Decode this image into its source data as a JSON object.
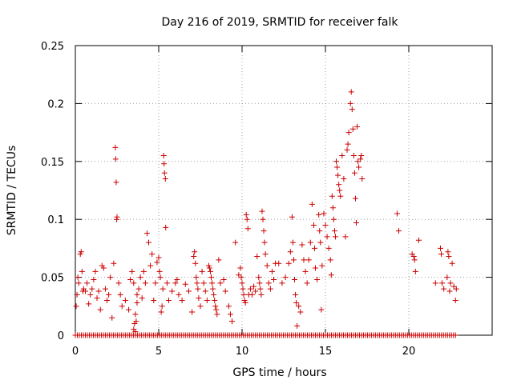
{
  "chart_data": {
    "type": "scatter",
    "title": "Day 216 of 2019, SRMTID for receiver falk",
    "xlabel": "GPS time / hours",
    "ylabel": "SRMTID / TECUs",
    "xlim": [
      0,
      25
    ],
    "ylim": [
      0,
      0.25
    ],
    "xticks": [
      0,
      5,
      10,
      15,
      20
    ],
    "xtick_labels": [
      "0",
      "5",
      "10",
      "15",
      "20"
    ],
    "yticks": [
      0,
      0.05,
      0.1,
      0.15,
      0.2,
      0.25
    ],
    "ytick_labels": [
      "0",
      "0.05",
      "0.1",
      "0.15",
      "0.2",
      "0.25"
    ],
    "grid": true,
    "marker": "+",
    "color": "#cc0000",
    "series": [
      {
        "name": "SRMTID",
        "points": [
          [
            0.05,
            0.025
          ],
          [
            0.1,
            0.035
          ],
          [
            0.15,
            0.05
          ],
          [
            0.2,
            0.045
          ],
          [
            0.3,
            0.07
          ],
          [
            0.35,
            0.072
          ],
          [
            0.4,
            0.055
          ],
          [
            0.45,
            0.038
          ],
          [
            0.5,
            0.04
          ],
          [
            0.6,
            0.038
          ],
          [
            0.7,
            0.045
          ],
          [
            0.8,
            0.027
          ],
          [
            0.9,
            0.035
          ],
          [
            1.0,
            0.04
          ],
          [
            1.1,
            0.048
          ],
          [
            1.2,
            0.055
          ],
          [
            1.3,
            0.032
          ],
          [
            1.4,
            0.038
          ],
          [
            1.5,
            0.022
          ],
          [
            1.6,
            0.06
          ],
          [
            1.7,
            0.058
          ],
          [
            1.8,
            0.04
          ],
          [
            1.9,
            0.03
          ],
          [
            2.0,
            0.035
          ],
          [
            2.1,
            0.05
          ],
          [
            2.2,
            0.015
          ],
          [
            2.3,
            0.062
          ],
          [
            2.4,
            0.162
          ],
          [
            2.42,
            0.152
          ],
          [
            2.45,
            0.132
          ],
          [
            2.48,
            0.1
          ],
          [
            2.5,
            0.102
          ],
          [
            2.6,
            0.045
          ],
          [
            2.7,
            0.035
          ],
          [
            2.8,
            0.025
          ],
          [
            3.0,
            0.03
          ],
          [
            3.2,
            0.022
          ],
          [
            3.3,
            0.048
          ],
          [
            3.4,
            0.055
          ],
          [
            3.5,
            0.045
          ],
          [
            3.5,
            0.005
          ],
          [
            3.55,
            0.01
          ],
          [
            3.6,
            0.003
          ],
          [
            3.6,
            0.018
          ],
          [
            3.65,
            0.012
          ],
          [
            3.7,
            0.028
          ],
          [
            3.7,
            0.035
          ],
          [
            3.8,
            0.04
          ],
          [
            3.9,
            0.05
          ],
          [
            4.0,
            0.032
          ],
          [
            4.1,
            0.055
          ],
          [
            4.2,
            0.045
          ],
          [
            4.3,
            0.088
          ],
          [
            4.4,
            0.08
          ],
          [
            4.5,
            0.06
          ],
          [
            4.6,
            0.07
          ],
          [
            4.7,
            0.03
          ],
          [
            4.8,
            0.045
          ],
          [
            4.9,
            0.063
          ],
          [
            5.0,
            0.067
          ],
          [
            5.05,
            0.055
          ],
          [
            5.1,
            0.05
          ],
          [
            5.15,
            0.02
          ],
          [
            5.2,
            0.025
          ],
          [
            5.25,
            0.04
          ],
          [
            5.3,
            0.155
          ],
          [
            5.32,
            0.148
          ],
          [
            5.35,
            0.14
          ],
          [
            5.4,
            0.135
          ],
          [
            5.42,
            0.093
          ],
          [
            5.5,
            0.045
          ],
          [
            5.6,
            0.03
          ],
          [
            5.8,
            0.038
          ],
          [
            6.0,
            0.045
          ],
          [
            6.1,
            0.048
          ],
          [
            6.2,
            0.035
          ],
          [
            6.4,
            0.03
          ],
          [
            6.6,
            0.044
          ],
          [
            6.8,
            0.038
          ],
          [
            7.0,
            0.02
          ],
          [
            7.1,
            0.068
          ],
          [
            7.15,
            0.072
          ],
          [
            7.2,
            0.062
          ],
          [
            7.25,
            0.05
          ],
          [
            7.3,
            0.045
          ],
          [
            7.35,
            0.04
          ],
          [
            7.4,
            0.032
          ],
          [
            7.5,
            0.025
          ],
          [
            7.6,
            0.055
          ],
          [
            7.7,
            0.045
          ],
          [
            7.8,
            0.038
          ],
          [
            7.9,
            0.03
          ],
          [
            8.0,
            0.06
          ],
          [
            8.05,
            0.058
          ],
          [
            8.1,
            0.055
          ],
          [
            8.15,
            0.05
          ],
          [
            8.2,
            0.045
          ],
          [
            8.25,
            0.04
          ],
          [
            8.3,
            0.035
          ],
          [
            8.35,
            0.03
          ],
          [
            8.4,
            0.025
          ],
          [
            8.45,
            0.022
          ],
          [
            8.5,
            0.018
          ],
          [
            8.6,
            0.065
          ],
          [
            8.7,
            0.045
          ],
          [
            8.9,
            0.048
          ],
          [
            9.0,
            0.038
          ],
          [
            9.2,
            0.025
          ],
          [
            9.3,
            0.018
          ],
          [
            9.4,
            0.012
          ],
          [
            9.6,
            0.08
          ],
          [
            9.8,
            0.052
          ],
          [
            9.9,
            0.058
          ],
          [
            9.95,
            0.05
          ],
          [
            10.0,
            0.045
          ],
          [
            10.05,
            0.04
          ],
          [
            10.1,
            0.035
          ],
          [
            10.15,
            0.03
          ],
          [
            10.2,
            0.028
          ],
          [
            10.25,
            0.104
          ],
          [
            10.3,
            0.1
          ],
          [
            10.35,
            0.092
          ],
          [
            10.4,
            0.035
          ],
          [
            10.5,
            0.04
          ],
          [
            10.6,
            0.035
          ],
          [
            10.7,
            0.042
          ],
          [
            10.8,
            0.038
          ],
          [
            10.9,
            0.068
          ],
          [
            11.0,
            0.05
          ],
          [
            11.05,
            0.045
          ],
          [
            11.1,
            0.04
          ],
          [
            11.15,
            0.035
          ],
          [
            11.2,
            0.107
          ],
          [
            11.25,
            0.1
          ],
          [
            11.3,
            0.09
          ],
          [
            11.35,
            0.08
          ],
          [
            11.4,
            0.07
          ],
          [
            11.5,
            0.06
          ],
          [
            11.6,
            0.045
          ],
          [
            11.7,
            0.04
          ],
          [
            11.8,
            0.055
          ],
          [
            11.9,
            0.048
          ],
          [
            12.0,
            0.062
          ],
          [
            12.2,
            0.062
          ],
          [
            12.4,
            0.045
          ],
          [
            12.6,
            0.05
          ],
          [
            12.8,
            0.062
          ],
          [
            12.9,
            0.072
          ],
          [
            13.0,
            0.102
          ],
          [
            13.05,
            0.08
          ],
          [
            13.1,
            0.065
          ],
          [
            13.15,
            0.048
          ],
          [
            13.2,
            0.035
          ],
          [
            13.25,
            0.028
          ],
          [
            13.3,
            0.008
          ],
          [
            13.4,
            0.025
          ],
          [
            13.5,
            0.02
          ],
          [
            13.6,
            0.078
          ],
          [
            13.7,
            0.065
          ],
          [
            13.8,
            0.055
          ],
          [
            13.9,
            0.045
          ],
          [
            14.0,
            0.065
          ],
          [
            14.1,
            0.08
          ],
          [
            14.2,
            0.113
          ],
          [
            14.3,
            0.095
          ],
          [
            14.35,
            0.075
          ],
          [
            14.4,
            0.058
          ],
          [
            14.5,
            0.048
          ],
          [
            14.6,
            0.104
          ],
          [
            14.65,
            0.09
          ],
          [
            14.7,
            0.08
          ],
          [
            14.75,
            0.022
          ],
          [
            14.8,
            0.06
          ],
          [
            14.9,
            0.105
          ],
          [
            15.0,
            0.095
          ],
          [
            15.1,
            0.085
          ],
          [
            15.2,
            0.075
          ],
          [
            15.3,
            0.065
          ],
          [
            15.35,
            0.052
          ],
          [
            15.4,
            0.12
          ],
          [
            15.45,
            0.11
          ],
          [
            15.5,
            0.1
          ],
          [
            15.55,
            0.09
          ],
          [
            15.6,
            0.085
          ],
          [
            15.65,
            0.15
          ],
          [
            15.7,
            0.145
          ],
          [
            15.75,
            0.138
          ],
          [
            15.8,
            0.13
          ],
          [
            15.85,
            0.125
          ],
          [
            15.9,
            0.12
          ],
          [
            16.0,
            0.155
          ],
          [
            16.1,
            0.135
          ],
          [
            16.2,
            0.085
          ],
          [
            16.3,
            0.16
          ],
          [
            16.35,
            0.165
          ],
          [
            16.4,
            0.175
          ],
          [
            16.5,
            0.2
          ],
          [
            16.55,
            0.21
          ],
          [
            16.6,
            0.195
          ],
          [
            16.65,
            0.178
          ],
          [
            16.7,
            0.155
          ],
          [
            16.75,
            0.14
          ],
          [
            16.8,
            0.118
          ],
          [
            16.85,
            0.097
          ],
          [
            16.9,
            0.18
          ],
          [
            16.95,
            0.15
          ],
          [
            17.0,
            0.145
          ],
          [
            17.1,
            0.152
          ],
          [
            17.15,
            0.155
          ],
          [
            17.2,
            0.135
          ],
          [
            19.3,
            0.105
          ],
          [
            19.4,
            0.09
          ],
          [
            20.2,
            0.07
          ],
          [
            20.3,
            0.068
          ],
          [
            20.35,
            0.065
          ],
          [
            20.4,
            0.055
          ],
          [
            20.6,
            0.082
          ],
          [
            21.6,
            0.045
          ],
          [
            21.9,
            0.075
          ],
          [
            21.95,
            0.07
          ],
          [
            22.0,
            0.045
          ],
          [
            22.1,
            0.04
          ],
          [
            22.3,
            0.05
          ],
          [
            22.35,
            0.072
          ],
          [
            22.4,
            0.068
          ],
          [
            22.45,
            0.038
          ],
          [
            22.5,
            0.045
          ],
          [
            22.6,
            0.062
          ],
          [
            22.7,
            0.042
          ],
          [
            22.8,
            0.03
          ],
          [
            22.85,
            0.04
          ]
        ]
      }
    ],
    "baseline": {
      "value": 0,
      "x_range": [
        0,
        22.8
      ],
      "note": "dense markers along the x-axis at y=0"
    }
  }
}
